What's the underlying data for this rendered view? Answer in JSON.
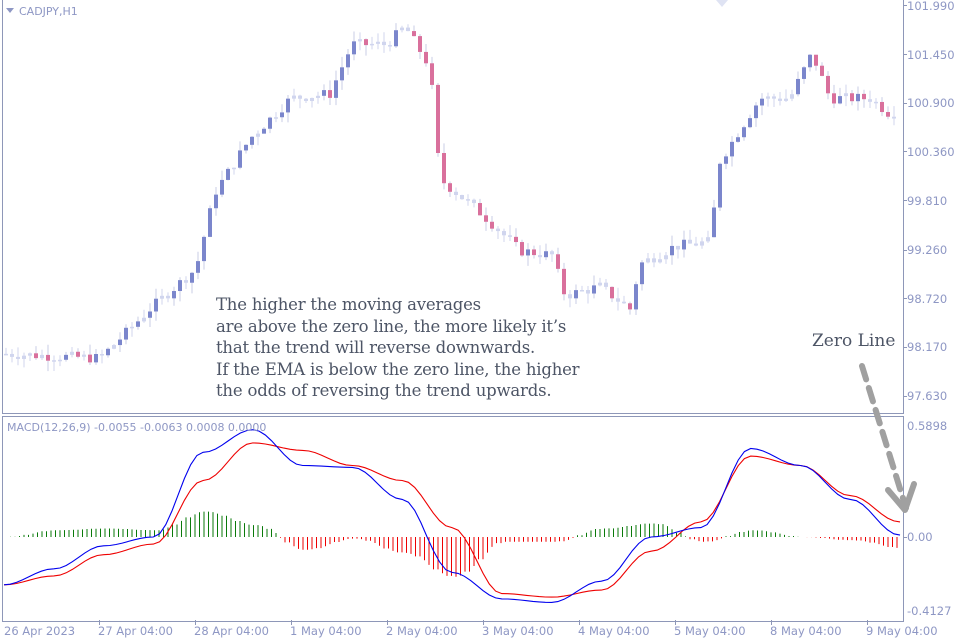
{
  "window": {
    "symbol_title": "CADJPY,H1",
    "macd_title": "MACD(12,26,9) -0.0055 -0.0063 0.0008 0.0000"
  },
  "annotation": {
    "lines": [
      "The higher the moving averages",
      "are above the zero line, the more likely it’s",
      "that the trend will reverse downwards.",
      "If the EMA is below the zero line, the higher",
      "the odds of reversing the trend upwards."
    ],
    "zero_line_label": "Zero Line"
  },
  "colors": {
    "bull_candle": "#7b86cc",
    "bear_candle": "#d9709c",
    "doji_candle": "#d0d5ee",
    "macd_line": "#0000ee",
    "signal_line": "#ee0000",
    "hist_positive": "#0a7a0a",
    "hist_negative": "#ee0000",
    "axis_text": "#8e97c4",
    "arrow": "#a0a0a0"
  },
  "price_axis": {
    "labels": [
      "101.990",
      "101.450",
      "100.900",
      "100.360",
      "99.810",
      "99.260",
      "98.720",
      "98.170",
      "97.630"
    ]
  },
  "macd_axis": {
    "labels": [
      "0.5898",
      "0.00",
      "-0.4127"
    ]
  },
  "time_axis": {
    "labels": [
      "26 Apr 2023",
      "27 Apr 04:00",
      "28 Apr 04:00",
      "1 May 04:00",
      "2 May 04:00",
      "3 May 04:00",
      "4 May 04:00",
      "5 May 04:00",
      "8 May 04:00",
      "9 May 04:00"
    ]
  },
  "chart_data": [
    {
      "type": "candlestick",
      "title": "CADJPY,H1",
      "xlabel": "",
      "ylabel": "",
      "ylim": [
        97.55,
        102.05
      ],
      "x_ticks": [
        "26 Apr 2023",
        "27 Apr 04:00",
        "28 Apr 04:00",
        "1 May 04:00",
        "2 May 04:00",
        "3 May 04:00",
        "4 May 04:00",
        "5 May 04:00",
        "8 May 04:00",
        "9 May 04:00"
      ],
      "y_ticks": [
        101.99,
        101.45,
        100.9,
        100.36,
        99.81,
        99.26,
        98.72,
        98.17,
        97.63
      ],
      "approx_close_path": [
        {
          "x": "26 Apr 2023",
          "close": 98.1
        },
        {
          "x": "27 Apr 04:00",
          "close": 98.05
        },
        {
          "x": "28 Apr 04:00",
          "close": 99.05
        },
        {
          "x": "1 May 04:00",
          "close": 100.95
        },
        {
          "x": "1 May 12:00",
          "close": 101.55
        },
        {
          "x": "2 May 04:00",
          "close": 101.55
        },
        {
          "x": "2 May 10:00",
          "close": 100.05
        },
        {
          "x": "3 May 04:00",
          "close": 99.6
        },
        {
          "x": "3 May 20:00",
          "close": 98.85
        },
        {
          "x": "4 May 04:00",
          "close": 98.85
        },
        {
          "x": "4 May 16:00",
          "close": 98.7
        },
        {
          "x": "5 May 04:00",
          "close": 99.35
        },
        {
          "x": "5 May 12:00",
          "close": 100.25
        },
        {
          "x": "8 May 04:00",
          "close": 101.35
        },
        {
          "x": "9 May 04:00",
          "close": 100.9
        }
      ],
      "grid": false,
      "legend": "none"
    },
    {
      "type": "line",
      "title": "MACD(12,26,9) -0.0055 -0.0063 0.0008 0.0000",
      "ylim": [
        -0.4127,
        0.5898
      ],
      "y_ticks": [
        0.5898,
        0.0,
        -0.4127
      ],
      "series": [
        {
          "name": "MACD (blue)",
          "approx_values": [
            -0.27,
            -0.18,
            -0.05,
            0.0,
            0.45,
            0.57,
            0.38,
            0.37,
            0.2,
            -0.2,
            -0.35,
            -0.37,
            -0.25,
            0.0,
            0.05,
            0.47,
            0.38,
            0.2,
            0.01
          ]
        },
        {
          "name": "Signal (red)",
          "approx_values": [
            -0.27,
            -0.22,
            -0.1,
            -0.04,
            0.3,
            0.5,
            0.46,
            0.38,
            0.3,
            0.05,
            -0.32,
            -0.34,
            -0.3,
            -0.08,
            0.08,
            0.43,
            0.38,
            0.22,
            0.08
          ]
        },
        {
          "name": "Histogram",
          "approx_range": [
            -0.15,
            0.12
          ]
        }
      ],
      "x_ticks": [
        "26 Apr 2023",
        "27 Apr 04:00",
        "28 Apr 04:00",
        "1 May 04:00",
        "2 May 04:00",
        "3 May 04:00",
        "4 May 04:00",
        "5 May 04:00",
        "8 May 04:00",
        "9 May 04:00"
      ],
      "annotations": [
        "Zero Line (dashed arrow pointing to 0.00 level)"
      ]
    }
  ]
}
